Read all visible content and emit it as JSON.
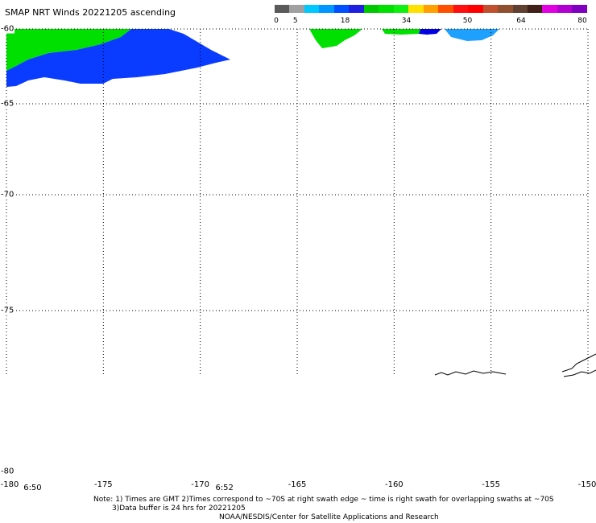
{
  "title": "SMAP NRT Winds 20221205 ascending",
  "colorbar": {
    "segments": [
      "#5a5a5a",
      "#a0a0a0",
      "#00c8ff",
      "#0096ff",
      "#0050ff",
      "#2020e0",
      "#00c800",
      "#00e000",
      "#10f010",
      "#ffe000",
      "#ffa000",
      "#ff5000",
      "#ff1010",
      "#ff0000",
      "#c05030",
      "#905030",
      "#604030",
      "#402018",
      "#e000e0",
      "#b000d0",
      "#8000c0"
    ],
    "labels": [
      {
        "text": "0",
        "value": 0
      },
      {
        "text": "5",
        "value": 5
      },
      {
        "text": "18",
        "value": 18
      },
      {
        "text": "34",
        "value": 34
      },
      {
        "text": "50",
        "value": 50
      },
      {
        "text": "64",
        "value": 64
      },
      {
        "text": "80",
        "value": 80
      }
    ]
  },
  "map": {
    "lat_labels": [
      {
        "text": "-60",
        "lat": -60
      },
      {
        "text": "-65",
        "lat": -65
      },
      {
        "text": "-70",
        "lat": -70
      },
      {
        "text": "-75",
        "lat": -75
      },
      {
        "text": "-80",
        "lat": -80
      }
    ],
    "lon_labels": [
      {
        "text": "-180",
        "lon": -180
      },
      {
        "text": "-175",
        "lon": -175
      },
      {
        "text": "-170",
        "lon": -170
      },
      {
        "text": "-165",
        "lon": -165
      },
      {
        "text": "-160",
        "lon": -160
      },
      {
        "text": "-155",
        "lon": -155
      },
      {
        "text": "-150",
        "lon": -150
      }
    ],
    "time_labels": [
      {
        "text": "6:50",
        "lon": -179.4
      },
      {
        "text": "6:52",
        "lon": -169.5
      }
    ],
    "colors": {
      "wind_green": "#00e000",
      "wind_blue": "#0a3cff",
      "wind_deep_blue": "#0000e0",
      "wind_light_blue": "#1ea0ff",
      "grid": "#000000",
      "coast": "#000000"
    }
  },
  "notes": {
    "line1": "Note: 1) Times are GMT 2)Times correspond to ~70S at right swath edge ~ time is right swath for overlapping swaths at ~70S",
    "line2": "3)Data buffer is 24 hrs for 20221205",
    "line3": "NOAA/NESDIS/Center for Satellite Applications and Research"
  }
}
